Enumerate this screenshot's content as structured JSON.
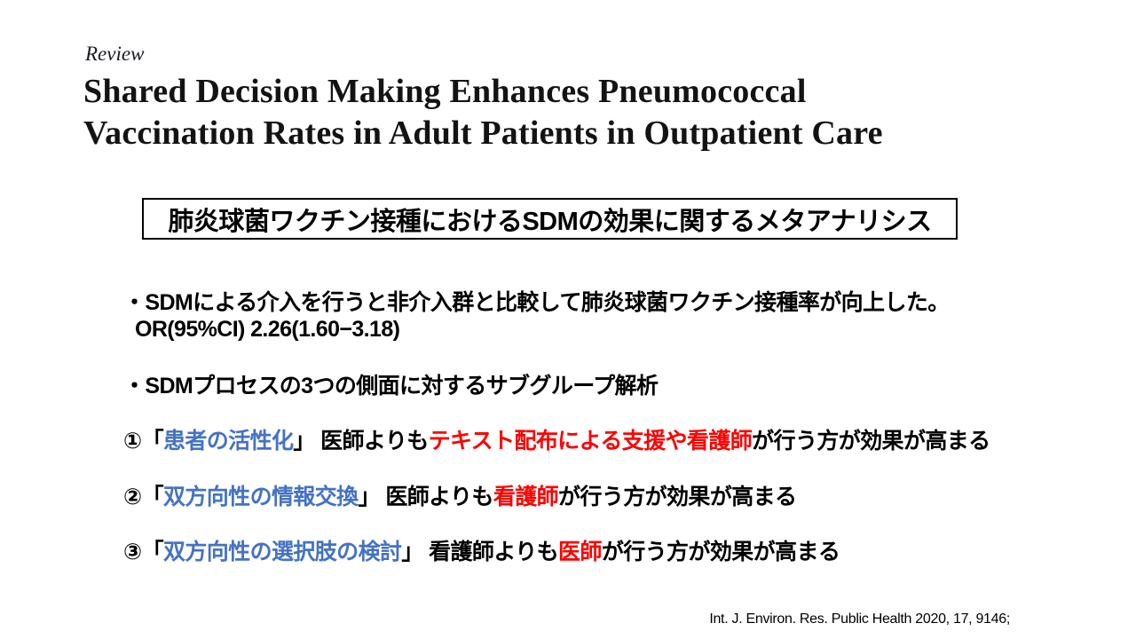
{
  "colors": {
    "background": "#FFFFFF",
    "title_text": "#131313",
    "body_text": "#000000",
    "aspect_blue": "#4472C4",
    "highlight_red": "#FF0000",
    "box_border": "#000000"
  },
  "header": {
    "review_label": "Review",
    "title_line1": "Shared Decision Making Enhances Pneumococcal",
    "title_line2": "Vaccination Rates in Adult Patients in Outpatient Care",
    "boxed_heading": "肺炎球菌ワクチン接種におけるSDMの効果に関するメタアナリシス"
  },
  "summary": {
    "bullet1_line1": "・SDMによる介入を行うと非介入群と比較して肺炎球菌ワクチン接種率が向上した。",
    "bullet1_line2": "OR(95%CI) 2.26(1.60−3.18)",
    "bullet2": "・SDMプロセスの3つの側面に対するサブグループ解析"
  },
  "findings": [
    {
      "segments": [
        {
          "text": "①「",
          "color": "black"
        },
        {
          "text": "患者の活性化",
          "color": "blue"
        },
        {
          "text": "」 医師よりも",
          "color": "black"
        },
        {
          "text": "テキスト配布による支援や看護師",
          "color": "red"
        },
        {
          "text": "が行う方が効果が高まる",
          "color": "black"
        }
      ]
    },
    {
      "segments": [
        {
          "text": "②「",
          "color": "black"
        },
        {
          "text": "双方向性の情報交換",
          "color": "blue"
        },
        {
          "text": "」 医師よりも",
          "color": "black"
        },
        {
          "text": "看護師",
          "color": "red"
        },
        {
          "text": "が行う方が効果が高まる",
          "color": "black"
        }
      ]
    },
    {
      "segments": [
        {
          "text": "③「",
          "color": "black"
        },
        {
          "text": "双方向性の選択肢の検討",
          "color": "blue"
        },
        {
          "text": "」 看護師よりも",
          "color": "black"
        },
        {
          "text": "医師",
          "color": "red"
        },
        {
          "text": "が行う方が効果が高まる",
          "color": "black"
        }
      ]
    }
  ],
  "footer": {
    "citation": "Int. J. Environ. Res. Public Health 2020, 17, 9146;"
  }
}
